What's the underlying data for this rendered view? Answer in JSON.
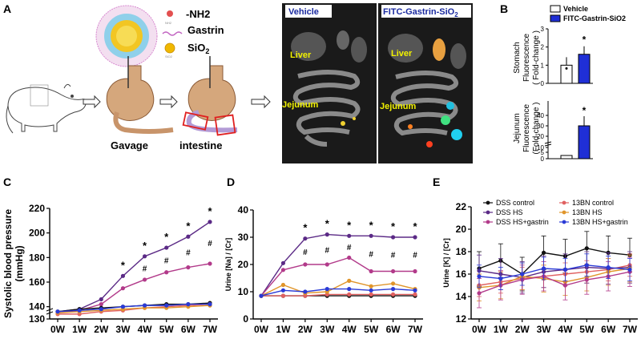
{
  "panel_a": {
    "letter": "A",
    "legend": {
      "nh2_label": "-NH2",
      "gastrin_label": "Gastrin",
      "sio2_label": "SiO",
      "sio2_sub": "2",
      "nh2_small": "NH2",
      "sio2_small": "SiO2"
    },
    "steps": {
      "gavage": "Gavage",
      "intestine": "intestine"
    },
    "imaging": {
      "vehicle_title": "Vehicle",
      "fitc_title": "FITC-Gastrin-SiO",
      "fitc_sub": "2",
      "liver_label": "Liver",
      "jejunum_label": "Jejunum"
    }
  },
  "panel_b": {
    "letter": "B",
    "legend": [
      {
        "label": "Vehicle",
        "color": "#ffffff"
      },
      {
        "label": "FITC-Gastrin-SiO2",
        "color": "#1f2fd6"
      }
    ],
    "stomach": {
      "ylabel_lines": [
        "Stomach",
        "Fluorescence",
        "( Fold-change )"
      ],
      "yticks": [
        0,
        1,
        2,
        3
      ],
      "ylim": [
        0,
        3
      ],
      "vehicle": 1.0,
      "fitc": 1.6,
      "sig": "*"
    },
    "jejunum": {
      "ylabel_lines": [
        "Jejunum",
        "Fluorescence",
        "(Fold-change )"
      ],
      "yticks": [
        "0",
        "5",
        "10",
        "20",
        "30",
        "40"
      ],
      "vehicle": 1.0,
      "fitc": 30,
      "sig": "*"
    }
  },
  "chart_data": [
    {
      "panel": "C",
      "type": "line",
      "ylabel_lines": [
        "Systolic blood pressure",
        "(mmHg)"
      ],
      "x": [
        "0W",
        "1W",
        "2W",
        "3W",
        "4W",
        "5W",
        "6W",
        "7W"
      ],
      "ylim": [
        130,
        220
      ],
      "yticks": [
        130,
        140,
        160,
        180,
        200,
        220
      ],
      "series": [
        {
          "color": "#5b2a86",
          "values": [
            136,
            138,
            146,
            165,
            181,
            188,
            197,
            209
          ]
        },
        {
          "color": "#b23a8a",
          "values": [
            135,
            137,
            142,
            155,
            162,
            168,
            172,
            175
          ]
        },
        {
          "color": "#111111",
          "values": [
            136,
            138,
            139,
            140,
            141,
            142,
            142,
            143
          ]
        },
        {
          "color": "#e06060",
          "values": [
            134,
            134,
            136,
            137,
            139,
            140,
            141,
            142
          ]
        },
        {
          "color": "#e0952a",
          "values": [
            135,
            136,
            137,
            138,
            139,
            139,
            140,
            141
          ]
        },
        {
          "color": "#2a3ad6",
          "values": [
            136,
            137,
            138,
            140,
            141,
            141,
            142,
            142
          ]
        }
      ],
      "stars": [
        "",
        "",
        "",
        "*",
        "*",
        "*",
        "*",
        "*"
      ],
      "hashes": [
        "",
        "",
        "",
        "",
        "#",
        "#",
        "#",
        "#"
      ]
    },
    {
      "panel": "D",
      "type": "line",
      "ylabel": "Urine  [Na] / [Cr]",
      "x": [
        "0W",
        "1W",
        "2W",
        "3W",
        "4W",
        "5W",
        "6W",
        "7W"
      ],
      "ylim": [
        0,
        40
      ],
      "yticks": [
        0,
        10,
        20,
        30,
        40
      ],
      "series": [
        {
          "color": "#5b2a86",
          "values": [
            8.5,
            20.5,
            29.5,
            31,
            30.5,
            30.5,
            30,
            30
          ]
        },
        {
          "color": "#b23a8a",
          "values": [
            8.5,
            18,
            20,
            20,
            22.5,
            17.5,
            17.5,
            17.5
          ]
        },
        {
          "color": "#111111",
          "values": [
            8.5,
            8.5,
            8.5,
            8.5,
            8.5,
            8.5,
            8.5,
            8.5
          ]
        },
        {
          "color": "#e06060",
          "values": [
            8.5,
            8.5,
            8.5,
            9,
            9,
            9,
            9,
            9
          ]
        },
        {
          "color": "#e0952a",
          "values": [
            8.5,
            12.5,
            9.5,
            10,
            14,
            12,
            13,
            11
          ]
        },
        {
          "color": "#2a3ad6",
          "values": [
            8.5,
            10.5,
            10,
            11,
            11,
            10.5,
            11,
            10.5
          ]
        }
      ],
      "stars": [
        "",
        "",
        "*",
        "*",
        "*",
        "*",
        "*",
        "*"
      ],
      "hashes": [
        "",
        "",
        "#",
        "#",
        "#",
        "#",
        "#",
        "#"
      ]
    },
    {
      "panel": "E",
      "type": "line",
      "ylabel": "Urine  [K] / [Cr]",
      "x": [
        "0W",
        "1W",
        "2W",
        "3W",
        "4W",
        "5W",
        "6W",
        "7W"
      ],
      "ylim": [
        12,
        22
      ],
      "yticks": [
        12,
        14,
        16,
        18,
        20,
        22
      ],
      "legend": [
        {
          "label": "DSS control",
          "color": "#111111"
        },
        {
          "label": "13BN control",
          "color": "#e06060"
        },
        {
          "label": "DSS HS",
          "color": "#5b2a86"
        },
        {
          "label": "13BN HS",
          "color": "#e0952a"
        },
        {
          "label": "DSS HS+gastrin",
          "color": "#b23a8a"
        },
        {
          "label": "13BN HS+gastrin",
          "color": "#2a3ad6"
        }
      ],
      "series": [
        {
          "color": "#111111",
          "values": [
            16.5,
            17.2,
            16.0,
            17.9,
            17.6,
            18.3,
            17.9,
            17.7
          ]
        },
        {
          "color": "#e06060",
          "values": [
            15.0,
            15.3,
            15.6,
            15.8,
            16.0,
            16.2,
            16.4,
            16.8
          ]
        },
        {
          "color": "#5b2a86",
          "values": [
            16.3,
            16.0,
            15.7,
            16.2,
            16.4,
            16.6,
            16.5,
            16.6
          ]
        },
        {
          "color": "#e0952a",
          "values": [
            14.8,
            15.0,
            15.8,
            15.6,
            15.3,
            15.7,
            16.2,
            16.5
          ]
        },
        {
          "color": "#b23a8a",
          "values": [
            14.3,
            15.0,
            15.5,
            15.8,
            15.0,
            15.5,
            15.8,
            16.2
          ]
        },
        {
          "color": "#2a3ad6",
          "values": [
            15.8,
            15.6,
            16.0,
            16.5,
            16.4,
            16.8,
            16.6,
            16.4
          ]
        }
      ]
    }
  ]
}
